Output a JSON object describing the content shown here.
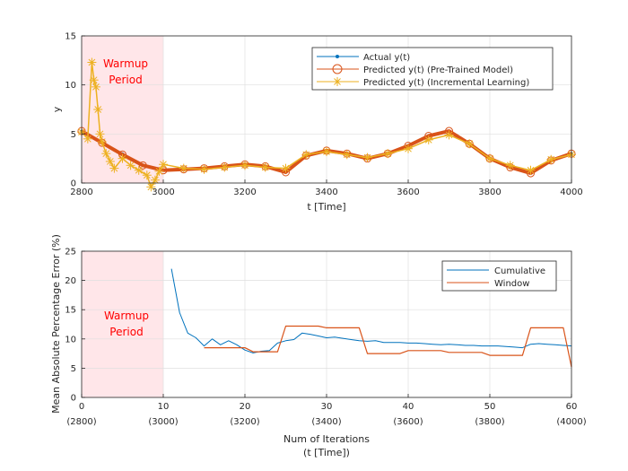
{
  "chart_data": [
    {
      "type": "line",
      "xlabel": "t [Time]",
      "ylabel": "y",
      "xlim": [
        2800,
        4000
      ],
      "ylim": [
        0,
        15
      ],
      "xticks": [
        "2800",
        "3000",
        "3200",
        "3400",
        "3600",
        "3800",
        "4000"
      ],
      "yticks": [
        "0",
        "5",
        "10",
        "15"
      ],
      "annotation": {
        "line1": "Warmup",
        "line2": "Period",
        "region": [
          2800,
          3000
        ]
      },
      "legend_position": "top-right",
      "series": [
        {
          "name": "Actual y(t)",
          "color": "#0072BD",
          "x": [
            2800,
            2850,
            2900,
            2950,
            3000,
            3050,
            3100,
            3150,
            3200,
            3250,
            3300,
            3350,
            3400,
            3450,
            3500,
            3550,
            3600,
            3650,
            3700,
            3750,
            3800,
            3850,
            3900,
            3950,
            4000
          ],
          "y": [
            5.3,
            4.2,
            3.0,
            1.8,
            1.3,
            1.4,
            1.5,
            1.7,
            1.9,
            1.7,
            1.1,
            2.8,
            3.3,
            3.0,
            2.5,
            3.0,
            3.8,
            4.8,
            5.3,
            4.0,
            2.5,
            1.6,
            1.0,
            2.3,
            3.0
          ]
        },
        {
          "name": "Predicted y(t) (Pre-Trained Model)",
          "color": "#D95319",
          "x": [
            2800,
            2850,
            2900,
            2950,
            3000,
            3050,
            3100,
            3150,
            3200,
            3250,
            3300,
            3350,
            3400,
            3450,
            3500,
            3550,
            3600,
            3650,
            3700,
            3750,
            3800,
            3850,
            3900,
            3950,
            4000
          ],
          "y": [
            5.3,
            4.1,
            2.9,
            1.8,
            1.3,
            1.4,
            1.5,
            1.7,
            1.9,
            1.7,
            1.1,
            2.8,
            3.3,
            3.0,
            2.5,
            3.0,
            3.8,
            4.8,
            5.3,
            4.0,
            2.5,
            1.6,
            1.0,
            2.3,
            3.0
          ]
        },
        {
          "name": "Predicted y(t) (Incremental Learning)",
          "color": "#EDB120",
          "x": [
            2800,
            2815,
            2825,
            2830,
            2835,
            2840,
            2845,
            2850,
            2860,
            2870,
            2880,
            2900,
            2920,
            2940,
            2960,
            2970,
            2980,
            2990,
            3000,
            3050,
            3100,
            3150,
            3200,
            3250,
            3300,
            3350,
            3400,
            3450,
            3500,
            3550,
            3600,
            3650,
            3700,
            3750,
            3800,
            3850,
            3900,
            3950,
            4000
          ],
          "y": [
            5.2,
            4.5,
            12.3,
            10.5,
            9.8,
            7.5,
            5.0,
            4.2,
            3.0,
            2.2,
            1.5,
            2.5,
            1.8,
            1.3,
            0.8,
            -0.4,
            0.3,
            1.2,
            1.9,
            1.5,
            1.4,
            1.6,
            1.8,
            1.6,
            1.5,
            2.9,
            3.2,
            2.9,
            2.6,
            3.0,
            3.5,
            4.4,
            4.9,
            4.0,
            2.5,
            1.8,
            1.3,
            2.4,
            2.9
          ]
        }
      ]
    },
    {
      "type": "line",
      "xlabel": "Num of Iterations",
      "xlabel2": "(t [Time])",
      "ylabel": "Mean Absolute Percentage Error (%)",
      "xlim": [
        0,
        60
      ],
      "ylim": [
        0,
        25
      ],
      "xticks": [
        "0",
        "10",
        "20",
        "30",
        "40",
        "50",
        "60"
      ],
      "xticks2": [
        "(2800)",
        "(3000)",
        "(3200)",
        "(3400)",
        "(3600)",
        "(3800)",
        "(4000)"
      ],
      "yticks": [
        "0",
        "5",
        "10",
        "15",
        "20",
        "25"
      ],
      "annotation": {
        "line1": "Warmup",
        "line2": "Period",
        "region": [
          0,
          10
        ]
      },
      "legend_position": "top-right",
      "series": [
        {
          "name": "Cumulative",
          "color": "#0072BD",
          "x": [
            11,
            12,
            13,
            14,
            15,
            16,
            17,
            18,
            19,
            20,
            21,
            22,
            23,
            24,
            25,
            26,
            27,
            28,
            29,
            30,
            31,
            32,
            33,
            34,
            35,
            36,
            37,
            38,
            39,
            40,
            41,
            42,
            43,
            44,
            45,
            46,
            47,
            48,
            49,
            50,
            51,
            52,
            53,
            54,
            55,
            56,
            57,
            58,
            59,
            60
          ],
          "y": [
            22.0,
            14.5,
            11.0,
            10.2,
            8.8,
            10.0,
            9.0,
            9.7,
            9.0,
            8.1,
            7.6,
            7.9,
            8.0,
            9.3,
            9.7,
            9.9,
            11.0,
            10.8,
            10.5,
            10.2,
            10.3,
            10.1,
            9.9,
            9.7,
            9.6,
            9.7,
            9.4,
            9.4,
            9.4,
            9.3,
            9.3,
            9.2,
            9.1,
            9.0,
            9.1,
            9.0,
            8.9,
            8.9,
            8.8,
            8.8,
            8.8,
            8.7,
            8.6,
            8.5,
            9.1,
            9.2,
            9.1,
            9.0,
            8.9,
            8.8
          ]
        },
        {
          "name": "Window",
          "color": "#D95319",
          "x": [
            15,
            16,
            20,
            21,
            24,
            25,
            29,
            30,
            34,
            35,
            39,
            40,
            44,
            45,
            49,
            50,
            54,
            55,
            59,
            60
          ],
          "y": [
            8.5,
            8.5,
            8.5,
            7.8,
            7.8,
            12.2,
            12.2,
            11.9,
            11.9,
            7.5,
            7.5,
            8.0,
            8.0,
            7.7,
            7.7,
            7.2,
            7.2,
            11.9,
            11.9,
            5.2
          ]
        }
      ]
    }
  ]
}
